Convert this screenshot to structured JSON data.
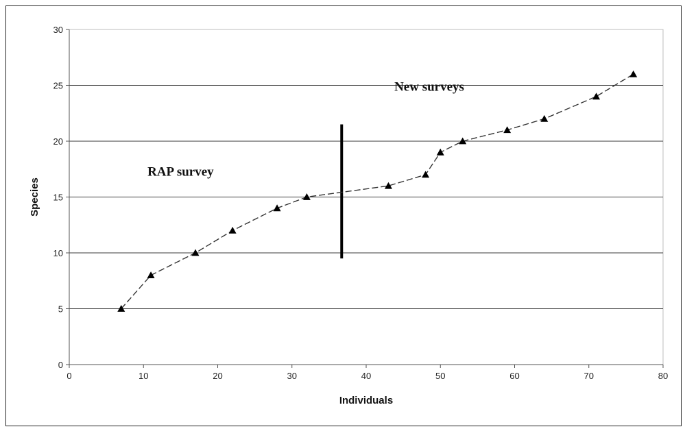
{
  "chart_data": {
    "type": "line",
    "xlabel": "Individuals",
    "ylabel": "Species",
    "xlim": [
      0,
      80
    ],
    "ylim": [
      0,
      30
    ],
    "x_ticks": [
      0,
      10,
      20,
      30,
      40,
      50,
      60,
      70,
      80
    ],
    "y_ticks": [
      0,
      5,
      10,
      15,
      20,
      25,
      30
    ],
    "grid": "horizontal",
    "series": [
      {
        "marker": "triangle",
        "line_style": "dashed",
        "x": [
          7,
          11,
          17,
          22,
          28,
          32,
          43,
          48,
          50,
          53,
          59,
          64,
          71,
          76
        ],
        "y": [
          5,
          8,
          10,
          12,
          14,
          15,
          16,
          17,
          19,
          20,
          21,
          22,
          24,
          26
        ]
      }
    ],
    "divider": {
      "x": 36.7,
      "y_range": [
        9.5,
        21.5
      ]
    },
    "annotations": [
      {
        "text": "RAP survey",
        "x": 15,
        "y": 16.9
      },
      {
        "text": "New surveys",
        "x": 48.5,
        "y": 24.5
      }
    ]
  }
}
